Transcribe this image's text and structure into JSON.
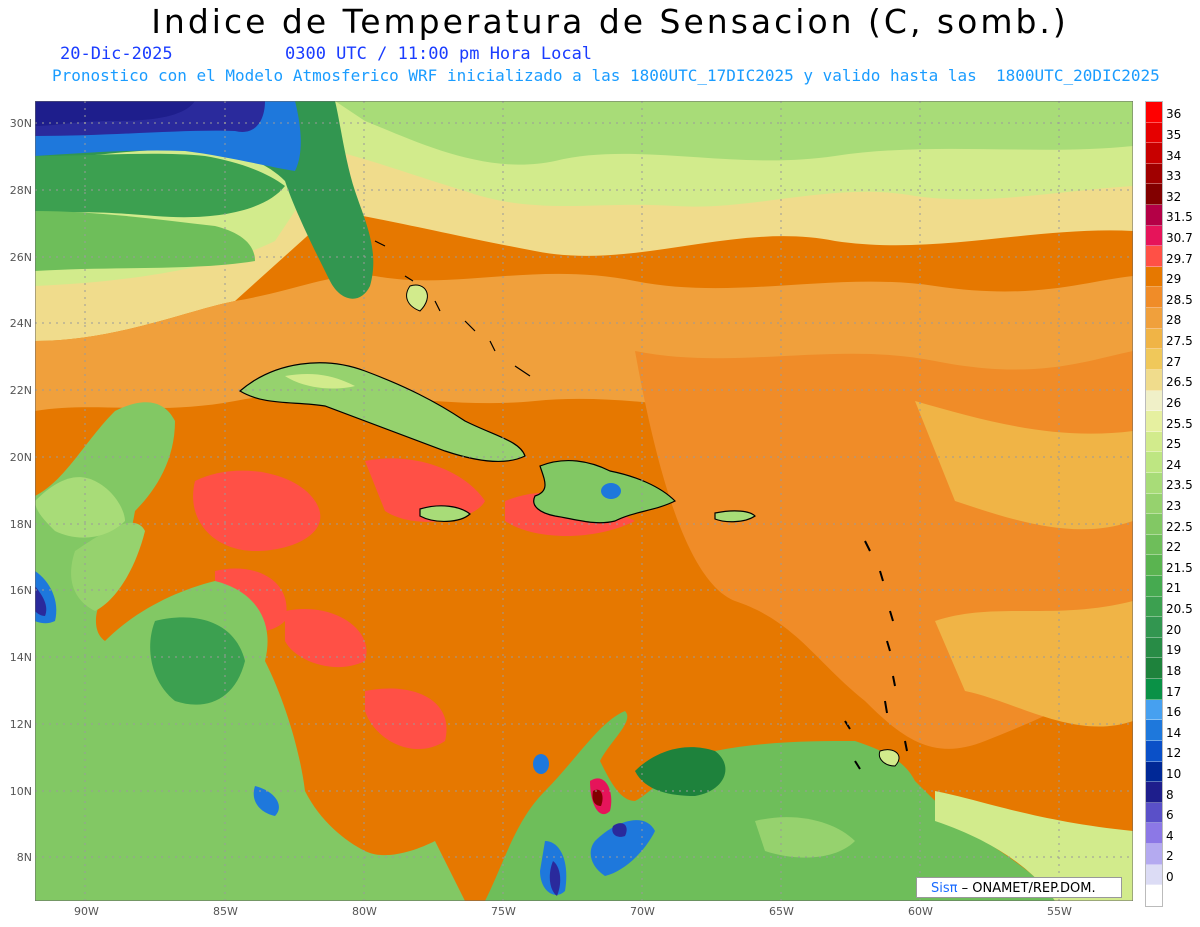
{
  "header": {
    "title": "Indice de Temperatura de Sensacion (C, somb.)",
    "date": "20-Dic-2025",
    "time": "0300 UTC / 11:00 pm Hora Local",
    "model_line": "Pronostico con el Modelo Atmosferico WRF inicializado a las 1800UTC_17DIC2025 y valido hasta las  1800UTC_20DIC2025"
  },
  "lat_labels": [
    "30N",
    "28N",
    "26N",
    "24N",
    "22N",
    "20N",
    "18N",
    "16N",
    "14N",
    "12N",
    "10N",
    "8N"
  ],
  "lon_labels": [
    "90W",
    "85W",
    "80W",
    "75W",
    "70W",
    "65W",
    "60W",
    "55W"
  ],
  "colorbar": [
    {
      "label": "36",
      "color": "#ff0000"
    },
    {
      "label": "35",
      "color": "#e60000"
    },
    {
      "label": "34",
      "color": "#c80000"
    },
    {
      "label": "33",
      "color": "#a00000"
    },
    {
      "label": "32",
      "color": "#820000"
    },
    {
      "label": "31.5",
      "color": "#b40046"
    },
    {
      "label": "30.7",
      "color": "#e6145a"
    },
    {
      "label": "29.7",
      "color": "#ff5046"
    },
    {
      "label": "29",
      "color": "#e67800"
    },
    {
      "label": "28.5",
      "color": "#f08c28"
    },
    {
      "label": "28",
      "color": "#f0a03c"
    },
    {
      "label": "27.5",
      "color": "#f0b446"
    },
    {
      "label": "27",
      "color": "#f0c85a"
    },
    {
      "label": "26.5",
      "color": "#f0dc8c"
    },
    {
      "label": "26",
      "color": "#f0f0c8"
    },
    {
      "label": "25.5",
      "color": "#e6f0a0"
    },
    {
      "label": "25",
      "color": "#d2eb8c"
    },
    {
      "label": "24",
      "color": "#bee682"
    },
    {
      "label": "23.5",
      "color": "#a8dc78"
    },
    {
      "label": "23",
      "color": "#96d26e"
    },
    {
      "label": "22.5",
      "color": "#82c864"
    },
    {
      "label": "22",
      "color": "#6ebe5a"
    },
    {
      "label": "21.5",
      "color": "#5ab450"
    },
    {
      "label": "21",
      "color": "#46aa50"
    },
    {
      "label": "20.5",
      "color": "#3ca050"
    },
    {
      "label": "20",
      "color": "#329650"
    },
    {
      "label": "19",
      "color": "#288c46"
    },
    {
      "label": "18",
      "color": "#1e823c"
    },
    {
      "label": "17",
      "color": "#0a9146"
    },
    {
      "label": "16",
      "color": "#46a0f0"
    },
    {
      "label": "14",
      "color": "#1e78dc"
    },
    {
      "label": "12",
      "color": "#0a50c8"
    },
    {
      "label": "10",
      "color": "#002896"
    },
    {
      "label": "8",
      "color": "#1e1e8c"
    },
    {
      "label": "6",
      "color": "#5a50c8"
    },
    {
      "label": "4",
      "color": "#8c78e6"
    },
    {
      "label": "2",
      "color": "#b4aaf0"
    },
    {
      "label": "0",
      "color": "#dcdcf5"
    },
    {
      "label": "",
      "color": "#ffffff"
    }
  ],
  "credit": {
    "logo": "Sisπ",
    "text": "– ONAMET/REP.DOM."
  },
  "colors": {
    "sea_warm": "#e67800",
    "sea_hot": "#ff5046",
    "land_green": "#82c864",
    "cold_blue": "#1e78dc",
    "night_purple": "#2a2a9c"
  }
}
